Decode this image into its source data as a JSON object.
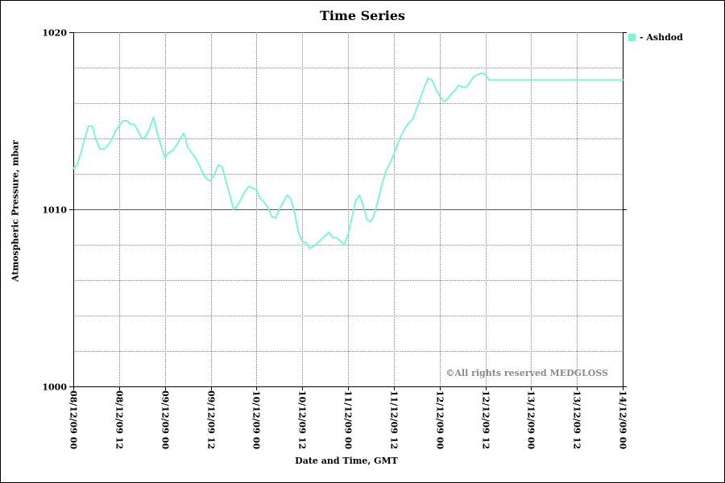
{
  "page": {
    "title": "Time Series",
    "xlabel": "Date and Time, GMT",
    "ylabel": "Atmospheric Pressure, mbar",
    "watermark": "©All rights reserved MEDGLOSS",
    "legend_label": "- Ashdod"
  },
  "colors": {
    "series": "#7ff5d5",
    "grid": "#888888",
    "axis": "#000000",
    "watermark": "#8a8a8a"
  },
  "chart_data": {
    "type": "line",
    "title": "Time Series",
    "xlabel": "Date and Time, GMT",
    "ylabel": "Atmospheric Pressure, mbar",
    "ylim": [
      1000,
      1020
    ],
    "xlim": [
      "2009-12-08 00:00",
      "2009-12-14 00:00"
    ],
    "y_ticks": [
      1000,
      1010,
      1020
    ],
    "y_grid": [
      1000,
      1002,
      1004,
      1006,
      1008,
      1010,
      1012,
      1014,
      1016,
      1018,
      1020
    ],
    "x_ticks": [
      "08/12/09 00",
      "08/12/09 12",
      "09/12/09 00",
      "09/12/09 12",
      "10/12/09 00",
      "10/12/09 12",
      "11/12/09 00",
      "11/12/09 12",
      "12/12/09 00",
      "12/12/09 12",
      "13/12/09 00",
      "13/12/09 12",
      "14/12/09 00"
    ],
    "grid": true,
    "legend_position": "top-right",
    "series": [
      {
        "name": "Ashdod",
        "x": [
          "2009-12-08 00:00",
          "2009-12-08 01:00",
          "2009-12-08 02:00",
          "2009-12-08 03:00",
          "2009-12-08 04:00",
          "2009-12-08 05:00",
          "2009-12-08 06:00",
          "2009-12-08 07:00",
          "2009-12-08 08:00",
          "2009-12-08 09:00",
          "2009-12-08 10:00",
          "2009-12-08 11:00",
          "2009-12-08 12:00",
          "2009-12-08 13:00",
          "2009-12-08 14:00",
          "2009-12-08 15:00",
          "2009-12-08 16:00",
          "2009-12-08 17:00",
          "2009-12-08 18:00",
          "2009-12-08 19:00",
          "2009-12-08 20:00",
          "2009-12-08 21:00",
          "2009-12-08 22:00",
          "2009-12-08 23:00",
          "2009-12-09 00:00",
          "2009-12-09 01:00",
          "2009-12-09 02:00",
          "2009-12-09 03:00",
          "2009-12-09 04:00",
          "2009-12-09 05:00",
          "2009-12-09 06:00",
          "2009-12-09 07:00",
          "2009-12-09 08:00",
          "2009-12-09 09:00",
          "2009-12-09 10:00",
          "2009-12-09 11:00",
          "2009-12-09 12:00",
          "2009-12-09 13:00",
          "2009-12-09 14:00",
          "2009-12-09 15:00",
          "2009-12-09 16:00",
          "2009-12-09 17:00",
          "2009-12-09 18:00",
          "2009-12-09 19:00",
          "2009-12-09 20:00",
          "2009-12-09 21:00",
          "2009-12-09 22:00",
          "2009-12-09 23:00",
          "2009-12-10 00:00",
          "2009-12-10 01:00",
          "2009-12-10 02:00",
          "2009-12-10 03:00",
          "2009-12-10 04:00",
          "2009-12-10 05:00",
          "2009-12-10 06:00",
          "2009-12-10 07:00",
          "2009-12-10 08:00",
          "2009-12-10 09:00",
          "2009-12-10 10:00",
          "2009-12-10 11:00",
          "2009-12-10 12:00",
          "2009-12-10 13:00",
          "2009-12-10 14:00",
          "2009-12-10 15:00",
          "2009-12-10 16:00",
          "2009-12-10 17:00",
          "2009-12-10 18:00",
          "2009-12-10 19:00",
          "2009-12-10 20:00",
          "2009-12-10 21:00",
          "2009-12-10 22:00",
          "2009-12-10 23:00",
          "2009-12-11 00:00",
          "2009-12-11 01:00",
          "2009-12-11 02:00",
          "2009-12-11 03:00",
          "2009-12-11 04:00",
          "2009-12-11 05:00",
          "2009-12-11 06:00",
          "2009-12-11 07:00",
          "2009-12-11 08:00",
          "2009-12-11 09:00",
          "2009-12-11 10:00",
          "2009-12-11 11:00",
          "2009-12-11 12:00",
          "2009-12-11 13:00",
          "2009-12-11 14:00",
          "2009-12-11 15:00",
          "2009-12-11 16:00",
          "2009-12-11 17:00",
          "2009-12-11 18:00",
          "2009-12-11 19:00",
          "2009-12-11 20:00",
          "2009-12-11 21:00",
          "2009-12-11 22:00",
          "2009-12-11 23:00",
          "2009-12-12 00:00",
          "2009-12-12 01:00",
          "2009-12-12 02:00",
          "2009-12-12 03:00",
          "2009-12-12 04:00",
          "2009-12-12 05:00",
          "2009-12-12 06:00",
          "2009-12-12 07:00",
          "2009-12-12 08:00",
          "2009-12-12 09:00",
          "2009-12-12 10:00",
          "2009-12-12 11:00",
          "2009-12-12 12:00",
          "2009-12-12 13:00",
          "2009-12-12 14:00",
          "2009-12-12 15:00",
          "2009-12-12 16:00",
          "2009-12-12 17:00",
          "2009-12-12 18:00",
          "2009-12-12 19:00",
          "2009-12-12 20:00",
          "2009-12-12 21:00",
          "2009-12-12 22:00",
          "2009-12-12 23:00",
          "2009-12-13 00:00",
          "2009-12-13 01:00",
          "2009-12-13 02:00",
          "2009-12-13 03:00",
          "2009-12-13 04:00",
          "2009-12-13 05:00",
          "2009-12-13 06:00",
          "2009-12-13 07:00",
          "2009-12-13 08:00",
          "2009-12-13 09:00",
          "2009-12-13 10:00",
          "2009-12-13 11:00",
          "2009-12-13 12:00",
          "2009-12-13 13:00",
          "2009-12-13 14:00",
          "2009-12-13 15:00",
          "2009-12-13 16:00",
          "2009-12-13 17:00",
          "2009-12-13 18:00",
          "2009-12-13 19:00",
          "2009-12-13 20:00",
          "2009-12-13 21:00",
          "2009-12-13 22:00",
          "2009-12-13 23:00",
          "2009-12-14 00:00"
        ],
        "values": [
          1012.3,
          1012.5,
          1013.2,
          1014.0,
          1014.7,
          1014.7,
          1013.9,
          1013.4,
          1013.4,
          1013.6,
          1013.9,
          1014.4,
          1014.7,
          1015.0,
          1015.0,
          1014.8,
          1014.8,
          1014.4,
          1014.0,
          1014.1,
          1014.6,
          1015.2,
          1014.3,
          1013.6,
          1012.9,
          1013.2,
          1013.3,
          1013.6,
          1014.0,
          1014.3,
          1013.5,
          1013.2,
          1012.9,
          1012.5,
          1012.0,
          1011.7,
          1011.6,
          1012.0,
          1012.5,
          1012.4,
          1011.6,
          1010.8,
          1010.0,
          1010.2,
          1010.6,
          1011.0,
          1011.3,
          1011.2,
          1011.1,
          1010.6,
          1010.4,
          1010.1,
          1009.6,
          1009.5,
          1010.0,
          1010.4,
          1010.8,
          1010.6,
          1009.8,
          1008.7,
          1008.2,
          1008.1,
          1007.8,
          1007.9,
          1008.1,
          1008.3,
          1008.5,
          1008.7,
          1008.4,
          1008.4,
          1008.2,
          1008.0,
          1008.6,
          1009.5,
          1010.5,
          1010.8,
          1010.2,
          1009.4,
          1009.3,
          1009.8,
          1010.6,
          1011.5,
          1012.2,
          1012.6,
          1013.1,
          1013.7,
          1014.2,
          1014.6,
          1014.9,
          1015.1,
          1015.7,
          1016.3,
          1016.9,
          1017.4,
          1017.3,
          1016.8,
          1016.4,
          1016.1,
          1016.2,
          1016.5,
          1016.7,
          1017.0,
          1016.9,
          1016.9,
          1017.2,
          1017.5,
          1017.6,
          1017.7,
          1017.6,
          1017.3,
          1017.3,
          1017.3,
          1017.3,
          1017.3,
          1017.3,
          1017.3,
          1017.3,
          1017.3,
          1017.3,
          1017.3,
          1017.3,
          1017.3,
          1017.3,
          1017.3,
          1017.3,
          1017.3,
          1017.3,
          1017.3,
          1017.3,
          1017.3,
          1017.3,
          1017.3,
          1017.3,
          1017.3,
          1017.3,
          1017.3,
          1017.3,
          1017.3,
          1017.3,
          1017.3,
          1017.3,
          1017.3,
          1017.3,
          1017.3,
          1017.3
        ]
      }
    ]
  }
}
